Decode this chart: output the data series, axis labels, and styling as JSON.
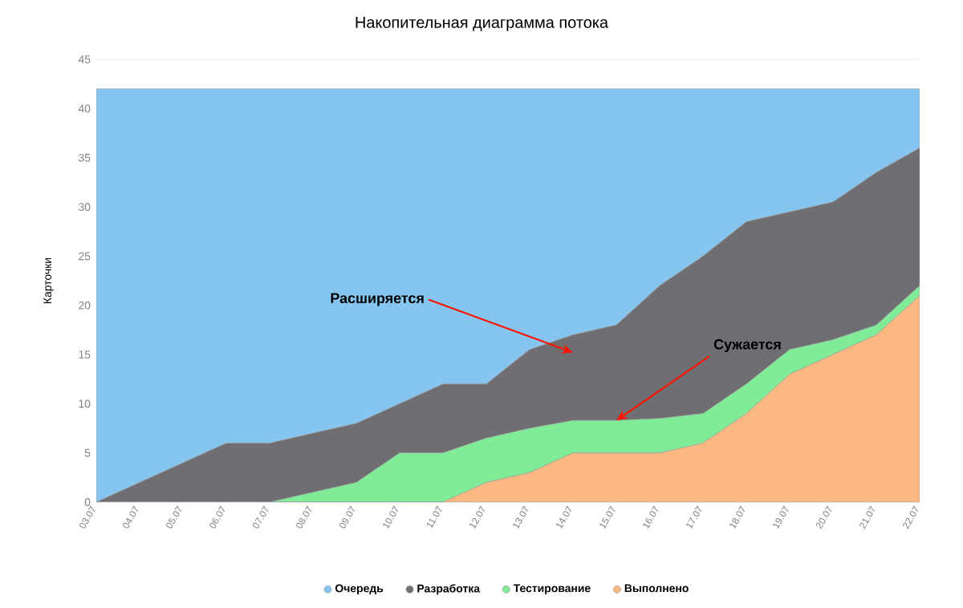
{
  "chart_data": {
    "type": "area",
    "title": "Накопительная диаграмма потока",
    "ylabel": "Карточки",
    "categories": [
      "03.07",
      "04.07",
      "05.07",
      "06.07",
      "07.07",
      "08.07",
      "09.07",
      "10.07",
      "11.07",
      "12.07",
      "13.07",
      "14.07",
      "15.07",
      "16.07",
      "17.07",
      "18.07",
      "19.07",
      "20.07",
      "21.07",
      "22.07"
    ],
    "stacked": true,
    "series": [
      {
        "name": "Выполнено",
        "color": "#fdb882",
        "values": [
          0,
          0,
          0,
          0,
          0,
          0,
          0,
          0,
          0,
          2,
          3,
          5,
          5,
          5,
          6,
          9,
          13,
          15,
          17,
          21
        ]
      },
      {
        "name": "Тестирование",
        "color": "#80ec98",
        "values": [
          0,
          0,
          0,
          0,
          0,
          1,
          2,
          5,
          5,
          4.5,
          4.5,
          3.3,
          3.3,
          3.5,
          3,
          3,
          2.5,
          1.5,
          1,
          1
        ]
      },
      {
        "name": "Разработка",
        "color": "#6f6e72",
        "values": [
          0,
          2,
          4,
          6,
          6,
          6,
          6,
          5,
          7,
          5.5,
          8,
          8.7,
          9.7,
          13.5,
          16,
          16.5,
          14,
          14,
          15.5,
          14
        ]
      },
      {
        "name": "Очередь",
        "color": "#85c5f0",
        "values": [
          42,
          40,
          38,
          36,
          36,
          35,
          34,
          32,
          30,
          30,
          26.5,
          25,
          24,
          20,
          17,
          13.5,
          12.5,
          11.5,
          8.5,
          6
        ]
      }
    ],
    "ylim": [
      0,
      45
    ],
    "yticks": [
      0,
      5,
      10,
      15,
      20,
      25,
      30,
      35,
      40,
      45
    ],
    "grid": "y",
    "legend": "bottom",
    "annotations": [
      {
        "text": "Расширяется",
        "x": "14.07",
        "y": 15.2
      },
      {
        "text": "Сужается",
        "x": "15.07",
        "y": 8.3
      }
    ]
  }
}
